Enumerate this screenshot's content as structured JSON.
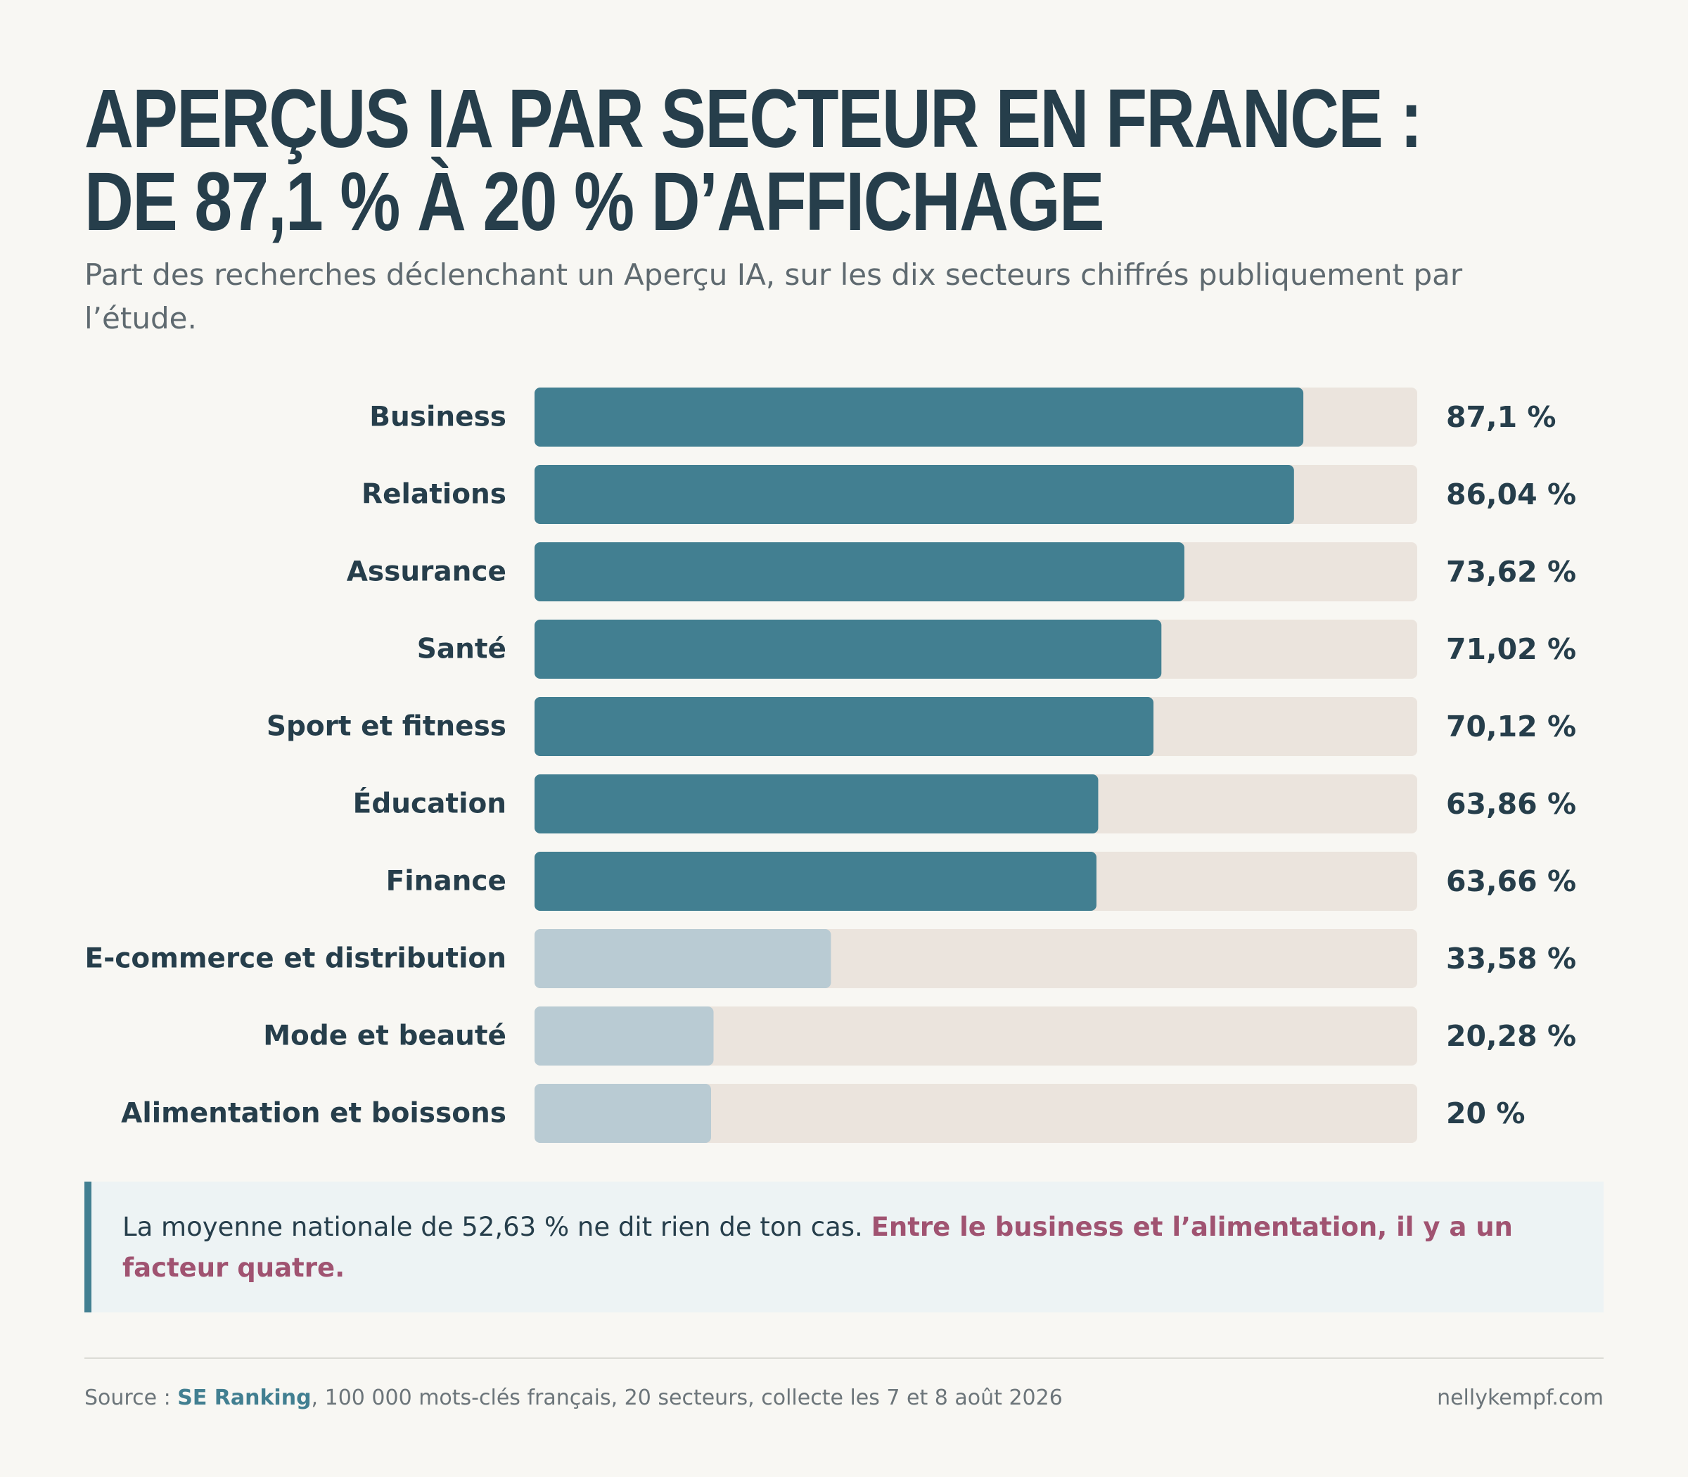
{
  "header": {
    "title_line1": "APERÇUS IA PAR SECTEUR EN FRANCE :",
    "title_line2": "DE 87,1 % À 20 % D’AFFICHAGE",
    "subtitle": "Part des recherches déclenchant un Aperçu IA, sur les dix secteurs chiffrés publiquement par l’étude."
  },
  "chart_data": {
    "type": "bar",
    "orientation": "horizontal",
    "categories": [
      "Business",
      "Relations",
      "Assurance",
      "Santé",
      "Sport et fitness",
      "Éducation",
      "Finance",
      "E-commerce et distribution",
      "Mode et beauté",
      "Alimentation et boissons"
    ],
    "values": [
      87.1,
      86.04,
      73.62,
      71.02,
      70.12,
      63.86,
      63.66,
      33.58,
      20.28,
      20
    ],
    "value_labels": [
      "87,1 %",
      "86,04 %",
      "73,62 %",
      "71,02 %",
      "70,12 %",
      "63,86 %",
      "63,66 %",
      "33,58 %",
      "20,28 %",
      "20 %"
    ],
    "highlighted": [
      true,
      true,
      true,
      true,
      true,
      true,
      true,
      false,
      false,
      false
    ],
    "xlim": [
      0,
      100
    ],
    "grid": false,
    "colors": {
      "highlight": "#427f91",
      "muted": "#b9cbd3",
      "track": "#ebe4dd",
      "label": "#263e4b"
    }
  },
  "callout": {
    "text": "La moyenne nationale de 52,63 % ne dit rien de ton cas.",
    "emphasis": "Entre le business et l’alimentation, il y a un facteur quatre."
  },
  "footer": {
    "source_prefix": "Source :",
    "source_link": "SE Ranking",
    "source_rest": ", 100 000 mots-clés français, 20 secteurs, collecte les 7 et 8 août 2026",
    "site": "nellykempf.com"
  }
}
